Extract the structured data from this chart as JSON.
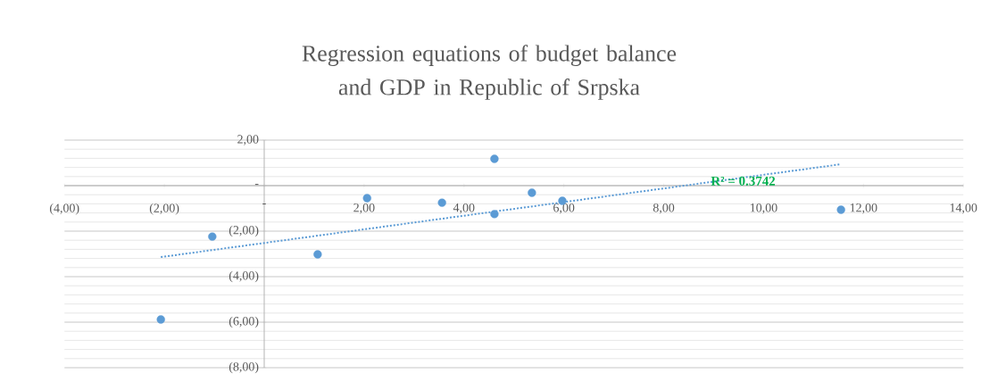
{
  "chart_data": {
    "type": "scatter",
    "title": "Regression equations of budget balance and GDP in Republic of Srpska",
    "series": [
      {
        "color": "#5b9bd5",
        "marker": "circle",
        "x": [
          -2.07,
          -1.04,
          1.07,
          2.06,
          3.56,
          4.61,
          4.61,
          5.36,
          5.97,
          11.55
        ],
        "values": [
          -5.88,
          -2.24,
          -3.02,
          -0.55,
          -0.75,
          1.18,
          -1.25,
          -0.31,
          -0.67,
          -1.06
        ]
      },
      {
        "type": "line",
        "color": "#5b9bd5",
        "line_style": "dotted",
        "marker": "none",
        "x": [
          -2.07,
          11.55
        ],
        "values": [
          -3.14,
          0.94
        ]
      }
    ],
    "annotations": [
      "R² = 0.3742"
    ],
    "xlim": [
      -4,
      14
    ],
    "xticks": [
      {
        "value": -4,
        "label": "(4,00)"
      },
      {
        "value": -2,
        "label": "(2,00)"
      },
      {
        "value": 0,
        "label": "-"
      },
      {
        "value": 2,
        "label": "2,00"
      },
      {
        "value": 4,
        "label": "4,00"
      },
      {
        "value": 6,
        "label": "6,00"
      },
      {
        "value": 8,
        "label": "8,00"
      },
      {
        "value": 10,
        "label": "10,00"
      },
      {
        "value": 12,
        "label": "12,00"
      },
      {
        "value": 14,
        "label": "14,00"
      }
    ],
    "ylim": [
      -8,
      2
    ],
    "yticks": [
      {
        "value": -8,
        "label": "(8,00)"
      },
      {
        "value": -6,
        "label": "(6,00)"
      },
      {
        "value": -4,
        "label": "(4,00)"
      },
      {
        "value": -2,
        "label": "(2,00)"
      },
      {
        "value": 0,
        "label": "-"
      },
      {
        "value": 2,
        "label": "2,00"
      }
    ],
    "grid": "y"
  }
}
